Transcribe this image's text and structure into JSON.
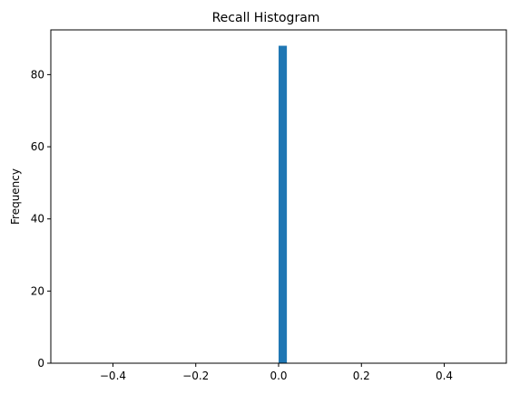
{
  "chart_data": {
    "type": "bar",
    "title": "Recall Histogram",
    "xlabel": "",
    "ylabel": "Frequency",
    "bins": [
      {
        "x0": 0.0,
        "x1": 0.02,
        "count": 88
      }
    ],
    "xlim": [
      -0.55,
      0.55
    ],
    "ylim": [
      0,
      92.4
    ],
    "xticks": [
      -0.4,
      -0.2,
      0.0,
      0.2,
      0.4
    ],
    "xtick_labels": [
      "−0.4",
      "−0.2",
      "0.0",
      "0.2",
      "0.4"
    ],
    "yticks": [
      0,
      20,
      40,
      60,
      80
    ],
    "ytick_labels": [
      "0",
      "20",
      "40",
      "60",
      "80"
    ],
    "grid": false,
    "legend": "none",
    "bar_color": "#1f77b4"
  }
}
